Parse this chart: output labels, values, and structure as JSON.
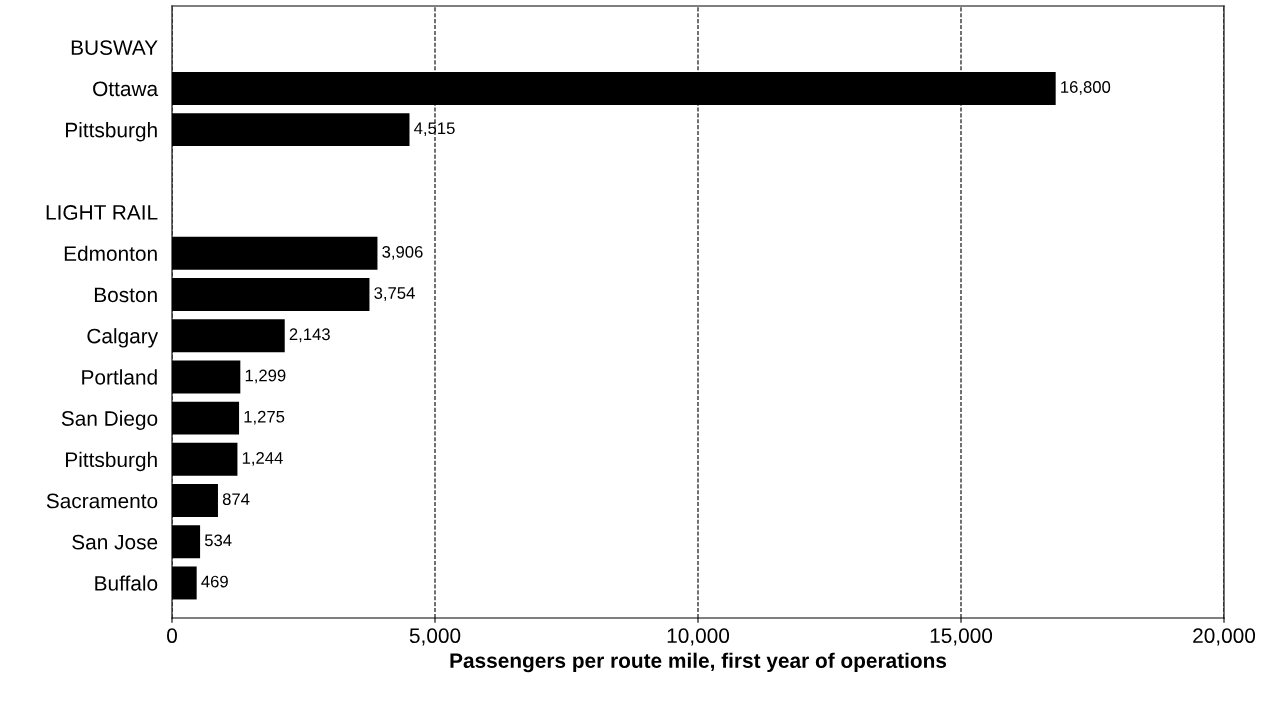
{
  "chart_data": {
    "type": "bar",
    "orientation": "horizontal",
    "xlabel": "Passengers per route mile, first year of operations",
    "categories": [
      "BUSWAY",
      "Ottawa",
      "Pittsburgh",
      null,
      "LIGHT RAIL",
      "Edmonton",
      "Boston",
      "Calgary",
      "Portland",
      "San Diego",
      "Pittsburgh",
      "Sacramento",
      "San Jose",
      "Buffalo"
    ],
    "values": [
      null,
      16800,
      4515,
      null,
      null,
      3906,
      3754,
      2143,
      1299,
      1275,
      1244,
      874,
      534,
      469
    ],
    "value_labels": [
      null,
      "16,800",
      "4,515",
      null,
      null,
      "3,906",
      "3,754",
      "2,143",
      "1,299",
      "1,275",
      "1,244",
      "874",
      "534",
      "469"
    ],
    "color": "#000000",
    "xlim": [
      0,
      20000
    ],
    "xticks": [
      0,
      {
        "value": 5000,
        "label": "5,000"
      },
      {
        "value": 10000,
        "label": "10,000"
      },
      {
        "value": 15000,
        "label": "15,000"
      },
      {
        "value": 20000,
        "label": "20,000"
      }
    ],
    "grid": "x",
    "line_style": "dashed",
    "legend": false
  }
}
